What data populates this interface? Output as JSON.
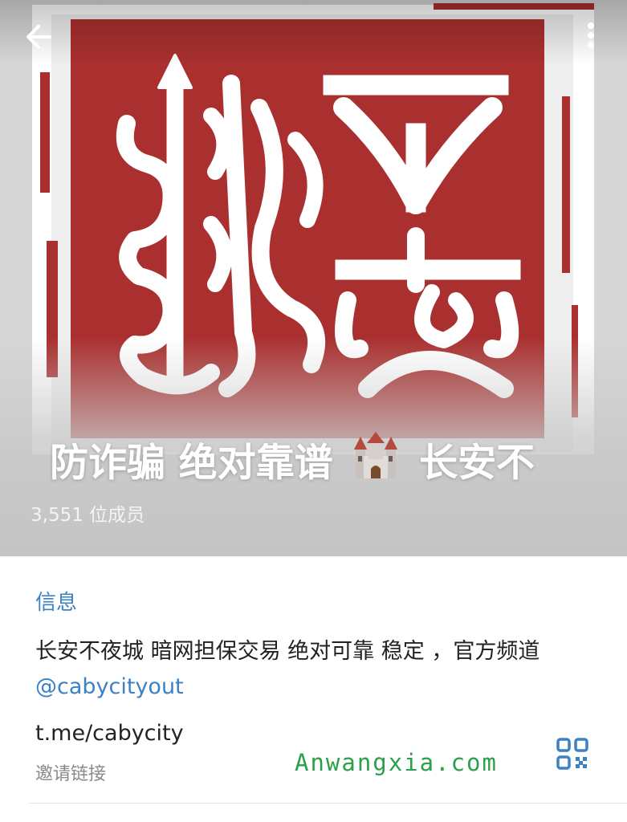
{
  "header": {
    "back_icon": "arrow-left-icon",
    "menu_icon": "more-vertical-icon",
    "seal_image": {
      "glyphs": "不夜城",
      "color": "#a9302f"
    },
    "title_part1": "防诈骗 绝对靠谱",
    "title_castle": "castle-emoji",
    "title_part2": "长安不",
    "members": "3,551 位成员"
  },
  "info": {
    "section_title": "信息",
    "description": "长安不夜城 暗网担保交易 绝对可靠 稳定 ，官方频道 ",
    "mention": "@cabycityout",
    "invite_link": "t.me/cabycity",
    "invite_label": "邀请链接",
    "qr_icon": "qr-code-icon"
  },
  "watermark": "Anwangxia.com",
  "colors": {
    "accent": "#3b82c4",
    "seal": "#a9302f",
    "watermark": "#2aa14a"
  }
}
